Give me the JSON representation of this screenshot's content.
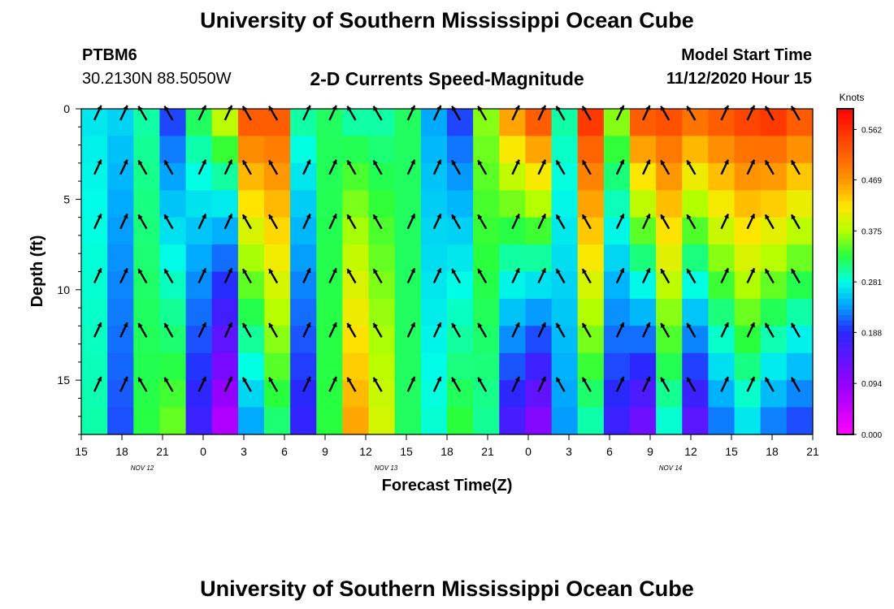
{
  "page": {
    "top_title": "University of Southern Mississippi Ocean Cube",
    "bottom_title": "University of Southern Mississippi Ocean Cube",
    "station_id": "PTBM6",
    "station_location": "30.2130N 88.5050W",
    "plot_title": "2-D Currents Speed-Magnitude",
    "model_start_label": "Model Start Time",
    "model_start_value": "11/12/2020 Hour 15"
  },
  "chart_data": {
    "type": "heatmap",
    "title": "2-D Currents Speed-Magnitude",
    "xlabel": "Forecast Time(Z)",
    "ylabel": "Depth (ft)",
    "x_tick_labels": [
      "15",
      "18",
      "21",
      "0",
      "3",
      "6",
      "9",
      "12",
      "15",
      "18",
      "21",
      "0",
      "3",
      "6",
      "9",
      "12",
      "15",
      "18",
      "21"
    ],
    "x_day_labels": [
      {
        "label": "NOV 12",
        "after_tick": 1
      },
      {
        "label": "NOV 13",
        "after_tick": 7
      },
      {
        "label": "NOV 14",
        "after_tick": 14
      }
    ],
    "y_ticks": [
      0,
      5,
      10,
      15
    ],
    "ylim": [
      0,
      18
    ],
    "y_inverted": true,
    "colorbar": {
      "unit_label": "Knots",
      "tick_labels": [
        "0.562",
        "0.469",
        "0.375",
        "0.281",
        "0.188",
        "0.094",
        "0.000"
      ],
      "tick_values": [
        0.562,
        0.469,
        0.375,
        0.281,
        0.188,
        0.094,
        0.0
      ],
      "range": [
        0.0,
        0.6
      ]
    },
    "depths_ft": [
      0,
      1.5,
      3,
      4.5,
      6,
      7.5,
      9,
      10.5,
      12,
      13.5,
      15,
      16.5,
      18
    ],
    "series": [
      {
        "hours_since_start": 0,
        "speed_surface": 0.27,
        "speed_bottom": 0.3
      },
      {
        "hours_since_start": 2,
        "speed_surface": 0.26,
        "speed_bottom": 0.2
      },
      {
        "hours_since_start": 4,
        "speed_surface": 0.3,
        "speed_bottom": 0.33
      },
      {
        "hours_since_start": 6,
        "speed_surface": 0.2,
        "speed_bottom": 0.36
      },
      {
        "hours_since_start": 8,
        "speed_surface": 0.32,
        "speed_bottom": 0.16
      },
      {
        "hours_since_start": 10,
        "speed_surface": 0.38,
        "speed_bottom": 0.05
      },
      {
        "hours_since_start": 12,
        "speed_surface": 0.52,
        "speed_bottom": 0.22
      },
      {
        "hours_since_start": 14,
        "speed_surface": 0.52,
        "speed_bottom": 0.3
      },
      {
        "hours_since_start": 16,
        "speed_surface": 0.3,
        "speed_bottom": 0.17
      },
      {
        "hours_since_start": 18,
        "speed_surface": 0.32,
        "speed_bottom": 0.33
      },
      {
        "hours_since_start": 20,
        "speed_surface": 0.3,
        "speed_bottom": 0.47
      },
      {
        "hours_since_start": 22,
        "speed_surface": 0.3,
        "speed_bottom": 0.4
      },
      {
        "hours_since_start": 24,
        "speed_surface": 0.32,
        "speed_bottom": 0.32
      },
      {
        "hours_since_start": 26,
        "speed_surface": 0.24,
        "speed_bottom": 0.29
      },
      {
        "hours_since_start": 28,
        "speed_surface": 0.2,
        "speed_bottom": 0.34
      },
      {
        "hours_since_start": 30,
        "speed_surface": 0.36,
        "speed_bottom": 0.3
      },
      {
        "hours_since_start": 32,
        "speed_surface": 0.46,
        "speed_bottom": 0.14
      },
      {
        "hours_since_start": 34,
        "speed_surface": 0.52,
        "speed_bottom": 0.08
      },
      {
        "hours_since_start": 36,
        "speed_surface": 0.3,
        "speed_bottom": 0.23
      },
      {
        "hours_since_start": 38,
        "speed_surface": 0.55,
        "speed_bottom": 0.28
      },
      {
        "hours_since_start": 40,
        "speed_surface": 0.36,
        "speed_bottom": 0.16
      },
      {
        "hours_since_start": 42,
        "speed_surface": 0.52,
        "speed_bottom": 0.1
      },
      {
        "hours_since_start": 44,
        "speed_surface": 0.53,
        "speed_bottom": 0.27
      },
      {
        "hours_since_start": 46,
        "speed_surface": 0.5,
        "speed_bottom": 0.12
      },
      {
        "hours_since_start": 48,
        "speed_surface": 0.52,
        "speed_bottom": 0.2
      },
      {
        "hours_since_start": 50,
        "speed_surface": 0.54,
        "speed_bottom": 0.25
      },
      {
        "hours_since_start": 52,
        "speed_surface": 0.55,
        "speed_bottom": 0.2
      },
      {
        "hours_since_start": 54,
        "speed_surface": 0.52,
        "speed_bottom": 0.18
      }
    ]
  }
}
